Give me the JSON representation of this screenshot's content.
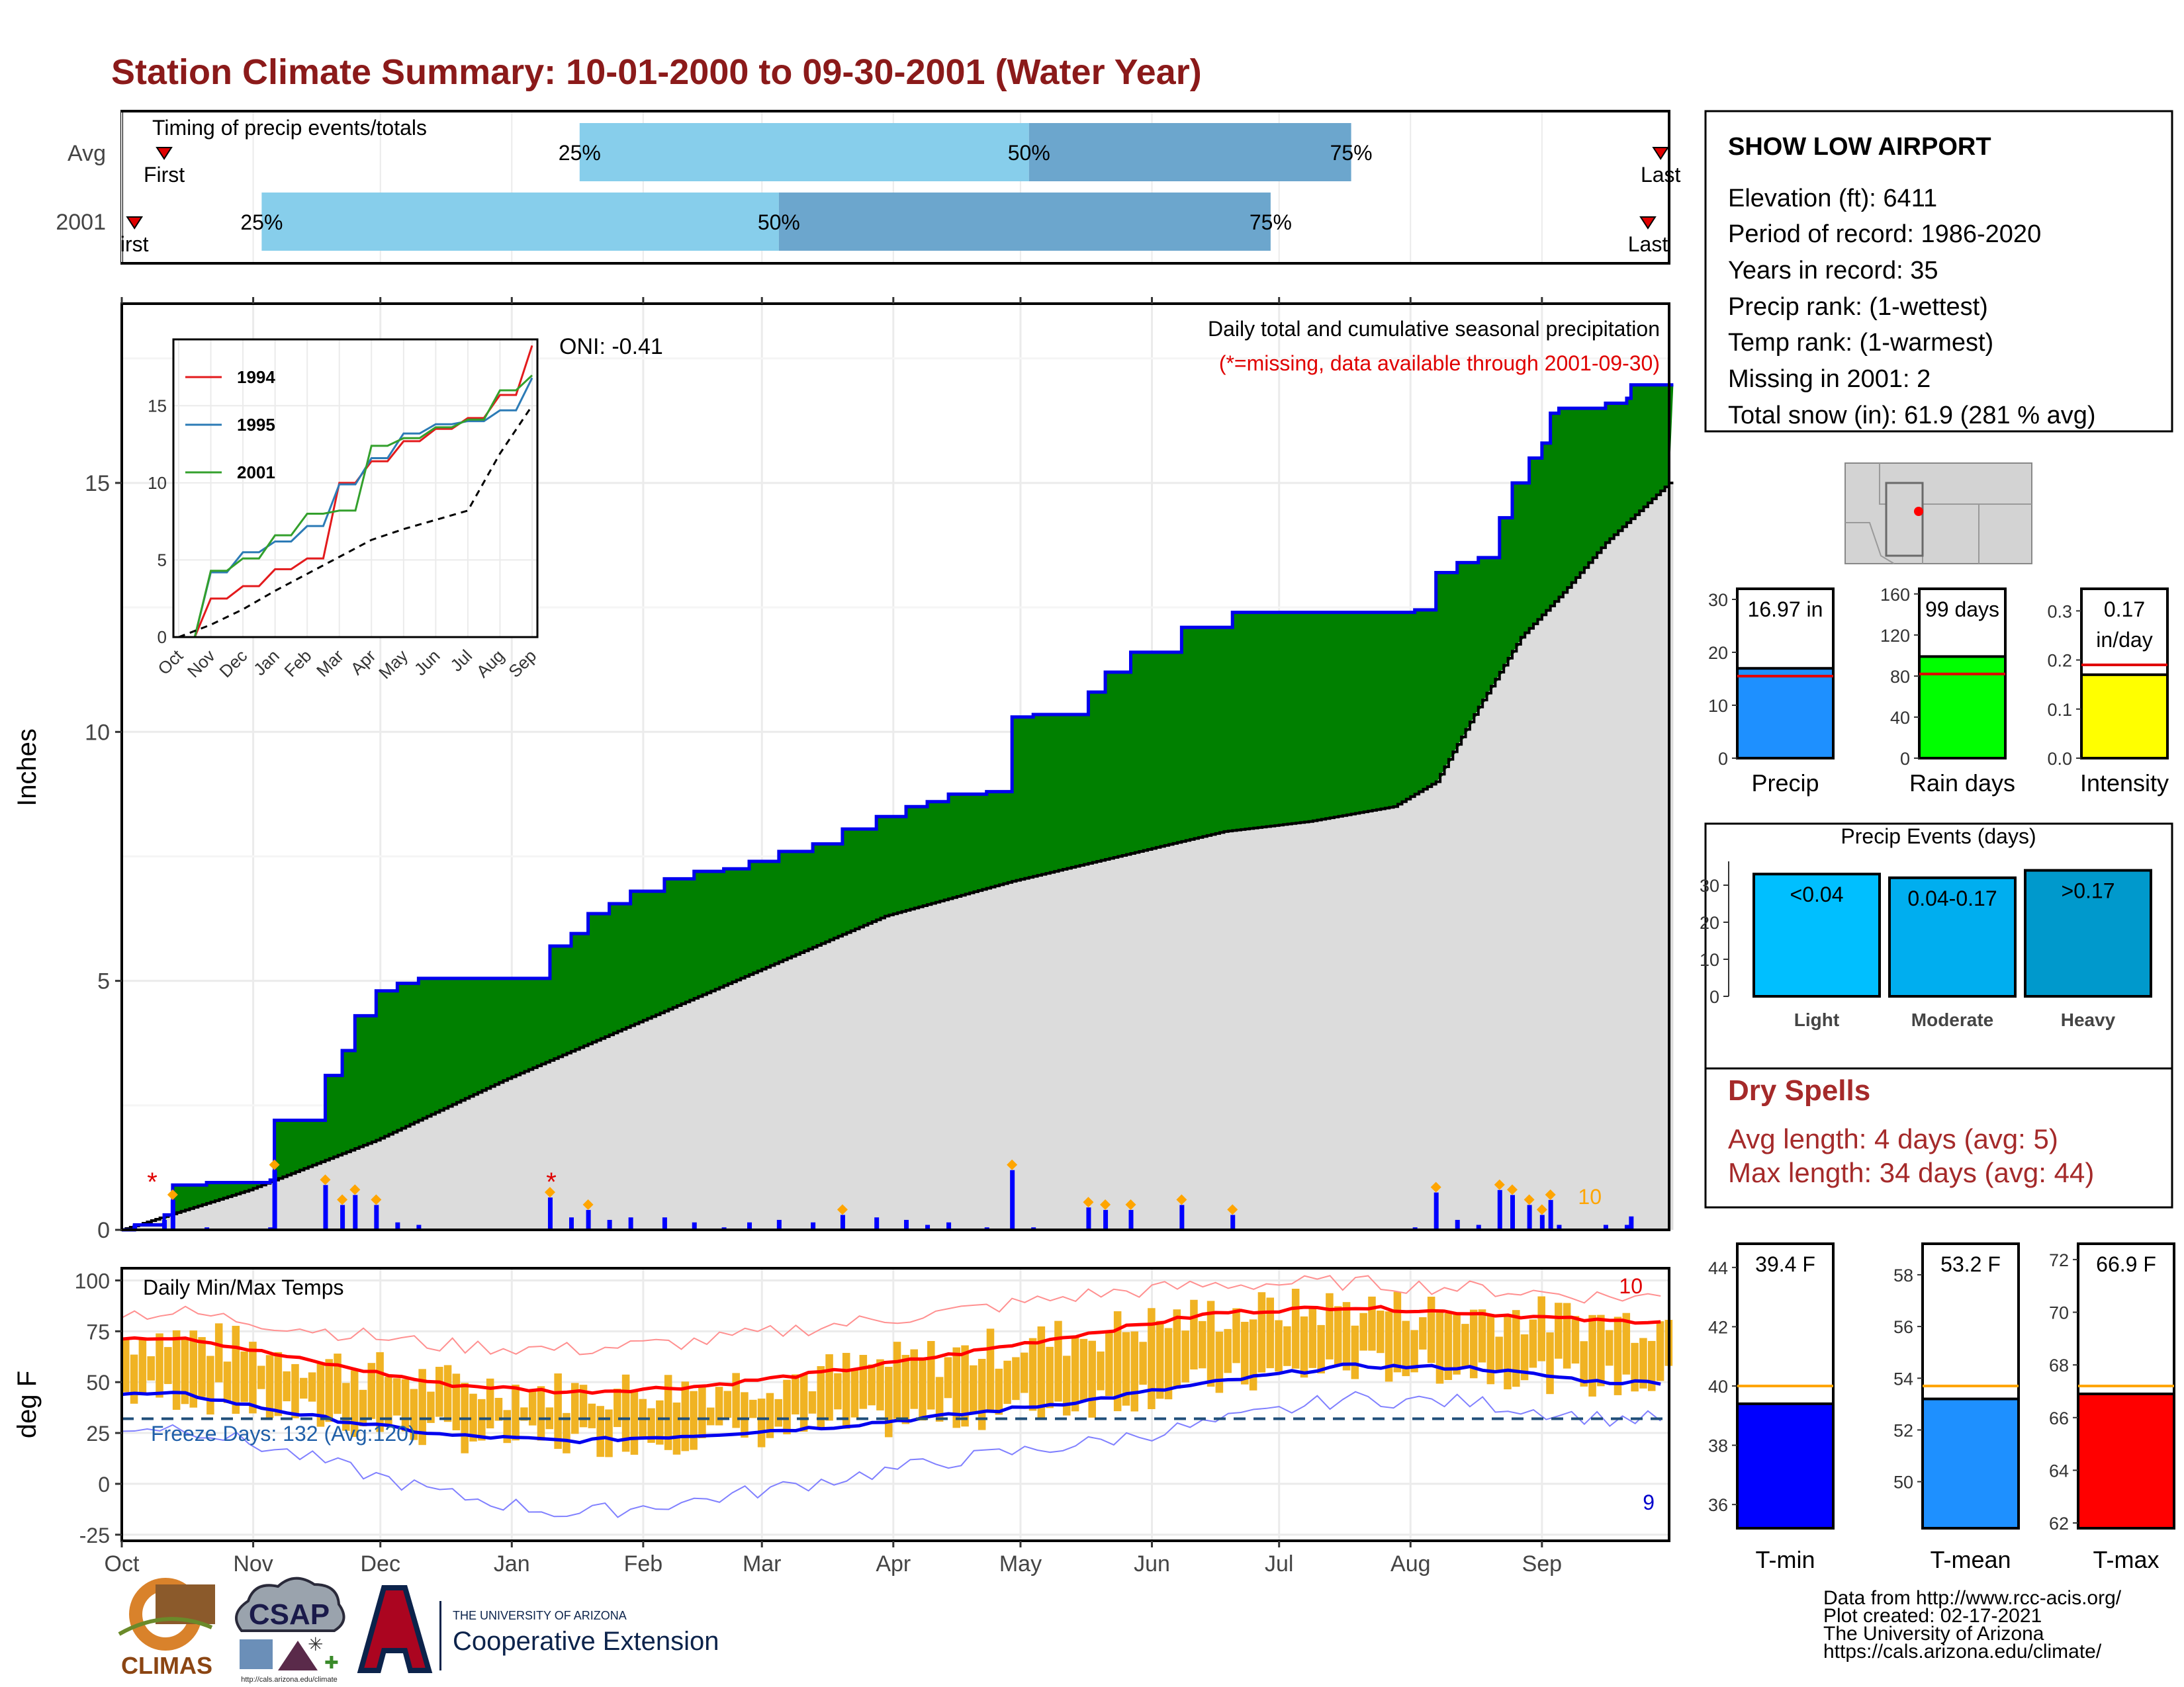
{
  "title": "Station Climate Summary: 10-01-2000 to 09-30-2001 (Water Year)",
  "colors": {
    "title": "#8B1A1A",
    "precip_fill": "#008000",
    "cum_line": "#0000EE",
    "normal_area": "#DCDCDC",
    "light_blue": "#87CEEB",
    "mid_blue": "#6CA6CD",
    "temp_bar": "#F0B323",
    "tmax_line": "#FF0000",
    "tmin_line": "#0000EE",
    "dry_spell": "#A52A2A",
    "orange": "#FFA500"
  },
  "timing": {
    "label": "Timing of precip events/totals",
    "rows": [
      "Avg",
      "2001"
    ],
    "avg": {
      "first": "First",
      "last": "Last",
      "p25": "25%",
      "p50": "50%",
      "p75": "75%"
    },
    "y2001": {
      "first": "irst",
      "last": "Last",
      "p25": "25%",
      "p50": "50%",
      "p75": "75%"
    }
  },
  "main_panel": {
    "ylabel": "Inches",
    "yticks": [
      "0",
      "5",
      "10",
      "15"
    ],
    "legend_title": "Daily total and cumulative seasonal precipitation",
    "legend_note": "(*=missing, data available through 2001-09-30)",
    "oni": "ONI: -0.41",
    "count_label": "10",
    "missing_mark": "*"
  },
  "inset": {
    "series": [
      "1994",
      "1995",
      "2001"
    ],
    "series_colors": [
      "#E31A1C",
      "#2C7BB6",
      "#33A02C"
    ],
    "yticks": [
      "0",
      "5",
      "10",
      "15"
    ],
    "xticks": [
      "Oct",
      "Nov",
      "Dec",
      "Jan",
      "Feb",
      "Mar",
      "Apr",
      "May",
      "Jun",
      "Jul",
      "Aug",
      "Sep"
    ]
  },
  "temp_panel": {
    "ylabel": "deg F",
    "label": "Daily Min/Max Temps",
    "freeze": "Freeze Days: 132 (Avg:120)",
    "yticks": [
      "-25",
      "0",
      "25",
      "50",
      "75",
      "100"
    ],
    "high_count": "10",
    "low_count": "9"
  },
  "months": [
    "Oct",
    "Nov",
    "Dec",
    "Jan",
    "Feb",
    "Mar",
    "Apr",
    "May",
    "Jun",
    "Jul",
    "Aug",
    "Sep"
  ],
  "station": {
    "name": "SHOW LOW AIRPORT",
    "lines": [
      "Elevation (ft): 6411",
      "Period of record: 1986-2020",
      "Years in record: 35",
      "Precip rank:  (1-wettest)",
      "Temp rank:  (1-warmest)",
      "Missing in 2001: 2",
      "Total snow (in): 61.9 (281 % avg)"
    ]
  },
  "mini_bars": {
    "precip": {
      "label": "Precip",
      "value_text": "16.97 in",
      "yticks": [
        "0",
        "10",
        "20",
        "30"
      ]
    },
    "rain_days": {
      "label": "Rain days",
      "value_text": "99 days",
      "yticks": [
        "0",
        "40",
        "80",
        "120",
        "160"
      ]
    },
    "intensity": {
      "label": "Intensity",
      "value_text_1": "0.17",
      "value_text_2": "in/day",
      "yticks": [
        "0.0",
        "0.1",
        "0.2",
        "0.3"
      ]
    }
  },
  "precip_events": {
    "title": "Precip Events (days)",
    "yticks": [
      "0",
      "10",
      "20",
      "30"
    ],
    "bars": [
      {
        "label": "<0.04",
        "category": "Light",
        "value": 33
      },
      {
        "label": "0.04-0.17",
        "category": "Moderate",
        "value": 32
      },
      {
        "label": ">0.17",
        "category": "Heavy",
        "value": 34
      }
    ]
  },
  "dry_spells": {
    "title": "Dry Spells",
    "avg_length": "Avg length: 4 days (avg: 5)",
    "max_length": "Max length: 34 days (avg: 44)"
  },
  "temp_bars": {
    "tmin": {
      "label": "T-min",
      "value_text": "39.4 F",
      "yticks": [
        "36",
        "38",
        "40",
        "42",
        "44"
      ]
    },
    "tmean": {
      "label": "T-mean",
      "value_text": "53.2 F",
      "yticks": [
        "50",
        "52",
        "54",
        "56",
        "58"
      ]
    },
    "tmax": {
      "label": "T-max",
      "value_text": "66.9 F",
      "yticks": [
        "62",
        "64",
        "66",
        "68",
        "70",
        "72"
      ]
    }
  },
  "footer": {
    "lines": [
      "Data from http://www.rcc-acis.org/",
      "Plot created: 02-17-2021",
      "The University of Arizona",
      "https://cals.arizona.edu/climate/"
    ],
    "climas": "CLIMAS",
    "csap": "CSAP",
    "csap_url": "http://cals.arizona.edu/climate",
    "ua_small": "THE UNIVERSITY OF ARIZONA",
    "ua_big": "Cooperative Extension"
  },
  "chart_data": [
    {
      "type": "bar",
      "name": "timing",
      "categories": [
        "Avg",
        "2001"
      ],
      "x_unit": "day of water year",
      "series": [
        {
          "name": "Avg",
          "first": 10,
          "p25": 108,
          "p50": 214,
          "p75": 290,
          "last": 363
        },
        {
          "name": "2001",
          "first": 3,
          "p25": 33,
          "p50": 155,
          "p75": 271,
          "last": 360
        }
      ]
    },
    {
      "type": "area",
      "name": "cumulative_precip",
      "ylabel": "Inches",
      "ylim": [
        0,
        18.6
      ],
      "x_unit": "day of water year",
      "cumulative_2001": [
        [
          0,
          0
        ],
        [
          3,
          0.1
        ],
        [
          10,
          0.3
        ],
        [
          12,
          0.9
        ],
        [
          20,
          0.95
        ],
        [
          35,
          1.0
        ],
        [
          36,
          2.2
        ],
        [
          42,
          2.2
        ],
        [
          48,
          3.1
        ],
        [
          52,
          3.6
        ],
        [
          55,
          4.3
        ],
        [
          60,
          4.8
        ],
        [
          65,
          4.95
        ],
        [
          70,
          5.05
        ],
        [
          85,
          5.05
        ],
        [
          100,
          5.05
        ],
        [
          101,
          5.7
        ],
        [
          106,
          5.95
        ],
        [
          110,
          6.35
        ],
        [
          115,
          6.55
        ],
        [
          120,
          6.8
        ],
        [
          128,
          7.05
        ],
        [
          135,
          7.2
        ],
        [
          142,
          7.25
        ],
        [
          148,
          7.4
        ],
        [
          155,
          7.6
        ],
        [
          163,
          7.75
        ],
        [
          170,
          8.05
        ],
        [
          178,
          8.3
        ],
        [
          185,
          8.5
        ],
        [
          190,
          8.6
        ],
        [
          195,
          8.75
        ],
        [
          204,
          8.8
        ],
        [
          208,
          8.8
        ],
        [
          210,
          10.3
        ],
        [
          215,
          10.35
        ],
        [
          228,
          10.8
        ],
        [
          232,
          11.2
        ],
        [
          238,
          11.6
        ],
        [
          250,
          12.1
        ],
        [
          262,
          12.4
        ],
        [
          280,
          12.4
        ],
        [
          300,
          12.4
        ],
        [
          305,
          12.45
        ],
        [
          310,
          13.2
        ],
        [
          315,
          13.4
        ],
        [
          320,
          13.5
        ],
        [
          325,
          14.3
        ],
        [
          328,
          15.0
        ],
        [
          332,
          15.5
        ],
        [
          335,
          15.8
        ],
        [
          337,
          16.4
        ],
        [
          339,
          16.5
        ],
        [
          350,
          16.6
        ],
        [
          355,
          16.7
        ],
        [
          356,
          16.97
        ],
        [
          365,
          16.97
        ]
      ],
      "normal": [
        [
          0,
          0
        ],
        [
          30,
          0.8
        ],
        [
          60,
          1.8
        ],
        [
          90,
          3.0
        ],
        [
          120,
          4.1
        ],
        [
          150,
          5.2
        ],
        [
          180,
          6.3
        ],
        [
          210,
          7.0
        ],
        [
          240,
          7.6
        ],
        [
          260,
          8.0
        ],
        [
          280,
          8.2
        ],
        [
          300,
          8.5
        ],
        [
          310,
          9.0
        ],
        [
          320,
          10.5
        ],
        [
          330,
          11.9
        ],
        [
          340,
          12.8
        ],
        [
          350,
          13.8
        ],
        [
          360,
          14.6
        ],
        [
          365,
          15.0
        ]
      ]
    },
    {
      "type": "line",
      "name": "inset_cumulative",
      "x": [
        "Oct",
        "Nov",
        "Dec",
        "Jan",
        "Feb",
        "Mar",
        "Apr",
        "May",
        "Jun",
        "Jul",
        "Aug",
        "Sep"
      ],
      "ylim": [
        0,
        19.3
      ],
      "series": [
        {
          "name": "1994",
          "values": [
            0,
            2.5,
            3.3,
            4.4,
            5.1,
            10.0,
            11.4,
            12.7,
            13.5,
            14.2,
            15.7,
            18.9
          ]
        },
        {
          "name": "1995",
          "values": [
            0,
            4.2,
            5.5,
            6.2,
            7.2,
            9.9,
            11.6,
            13.2,
            13.8,
            14.0,
            14.7,
            16.8
          ]
        },
        {
          "name": "2001",
          "values": [
            0,
            4.3,
            5.1,
            6.6,
            8.0,
            8.2,
            12.4,
            12.9,
            13.6,
            14.1,
            16.0,
            16.97
          ]
        },
        {
          "name": "average",
          "values": [
            0,
            0.8,
            1.8,
            3.0,
            4.1,
            5.2,
            6.3,
            7.0,
            7.6,
            8.2,
            11.9,
            15.0
          ]
        }
      ]
    },
    {
      "type": "line",
      "name": "daily_temps",
      "ylabel": "deg F",
      "ylim": [
        -28,
        106
      ],
      "x": [
        "Oct",
        "Nov",
        "Dec",
        "Jan",
        "Feb",
        "Mar",
        "Apr",
        "May",
        "Jun",
        "Jul",
        "Aug",
        "Sep"
      ],
      "series": [
        {
          "name": "avg_max",
          "values": [
            72,
            60,
            49,
            45,
            48,
            55,
            64,
            74,
            84,
            87,
            84,
            80
          ]
        },
        {
          "name": "avg_min",
          "values": [
            44,
            33,
            24,
            21,
            24,
            28,
            34,
            41,
            50,
            58,
            57,
            50
          ]
        },
        {
          "name": "record_max",
          "values": [
            84,
            76,
            68,
            66,
            70,
            78,
            85,
            93,
            98,
            99,
            96,
            92
          ]
        },
        {
          "name": "record_min",
          "values": [
            28,
            12,
            -5,
            -15,
            -8,
            2,
            12,
            20,
            30,
            42,
            40,
            32
          ]
        }
      ],
      "freeze_line": 32
    },
    {
      "type": "bar",
      "name": "season_totals",
      "categories": [
        "Precip",
        "Rain days",
        "Intensity"
      ],
      "values": [
        16.97,
        99,
        0.17
      ],
      "averages": [
        15.5,
        82,
        0.19
      ]
    },
    {
      "type": "bar",
      "name": "precip_events",
      "categories": [
        "Light",
        "Moderate",
        "Heavy"
      ],
      "values": [
        33,
        32,
        34
      ],
      "ylim": [
        0,
        35
      ]
    },
    {
      "type": "bar",
      "name": "temperature_summary",
      "categories": [
        "T-min",
        "T-mean",
        "T-max"
      ],
      "values": [
        39.4,
        53.2,
        66.9
      ],
      "averages": [
        40.0,
        53.7,
        67.2
      ]
    }
  ]
}
